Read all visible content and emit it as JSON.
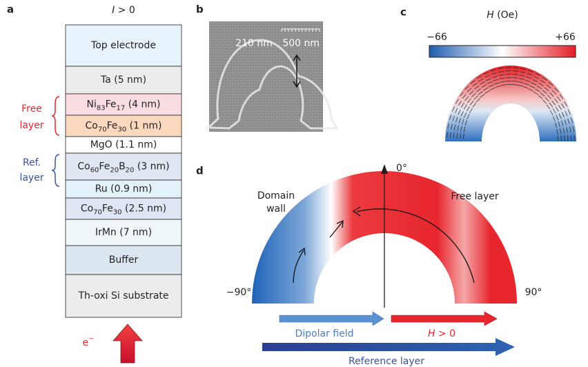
{
  "panels": {
    "a": {
      "letter": "a",
      "current": {
        "symbol": "I",
        "rest": " > 0"
      },
      "layers": [
        {
          "segments": [
            {
              "text": "Top electrode"
            }
          ]
        },
        {
          "segments": [
            {
              "text": "Ta (5 nm)"
            }
          ]
        },
        {
          "segments": [
            {
              "text": "Ni"
            },
            {
              "sub": "83"
            },
            {
              "text": "Fe"
            },
            {
              "sub": "17"
            },
            {
              "text": " (4 nm)"
            }
          ]
        },
        {
          "segments": [
            {
              "text": "Co"
            },
            {
              "sub": "70"
            },
            {
              "text": "Fe"
            },
            {
              "sub": "30"
            },
            {
              "text": " (1 nm)"
            }
          ]
        },
        {
          "segments": [
            {
              "text": "MgO (1.1 nm)"
            }
          ]
        },
        {
          "segments": [
            {
              "text": "Co"
            },
            {
              "sub": "60"
            },
            {
              "text": "Fe"
            },
            {
              "sub": "20"
            },
            {
              "text": "B"
            },
            {
              "sub": "20"
            },
            {
              "text": " (3 nm)"
            }
          ]
        },
        {
          "segments": [
            {
              "text": "Ru (0.9 nm)"
            }
          ]
        },
        {
          "segments": [
            {
              "text": "Co"
            },
            {
              "sub": "70"
            },
            {
              "text": "Fe"
            },
            {
              "sub": "30"
            },
            {
              "text": " (2.5 nm)"
            }
          ]
        },
        {
          "segments": [
            {
              "text": "IrMn (7 nm)"
            }
          ]
        },
        {
          "segments": [
            {
              "text": "Buffer"
            }
          ]
        },
        {
          "segments": [
            {
              "text": "Th-oxi Si substrate"
            }
          ]
        }
      ],
      "free_layer": [
        "Free",
        "layer"
      ],
      "ref_layer": [
        "Ref.",
        "layer"
      ],
      "electron": {
        "text": "e",
        "sup": "−"
      }
    },
    "b": {
      "letter": "b",
      "width_label": "210 nm",
      "scale_label": "500 nm"
    },
    "c": {
      "letter": "c",
      "colorbar_title": {
        "symbol": "H",
        "rest": " (Oe)"
      },
      "min_label": "−66",
      "max_label": "+66"
    },
    "d": {
      "letter": "d",
      "top_angle": "0°",
      "left_angle": "−90°",
      "right_angle": "90°",
      "domain_wall": [
        "Domain",
        "wall"
      ],
      "free_layer": "Free layer",
      "dipolar_field": "Dipolar field",
      "field_label": {
        "symbol": "H",
        "rest": " > 0"
      },
      "reference_layer": "Reference layer"
    }
  }
}
